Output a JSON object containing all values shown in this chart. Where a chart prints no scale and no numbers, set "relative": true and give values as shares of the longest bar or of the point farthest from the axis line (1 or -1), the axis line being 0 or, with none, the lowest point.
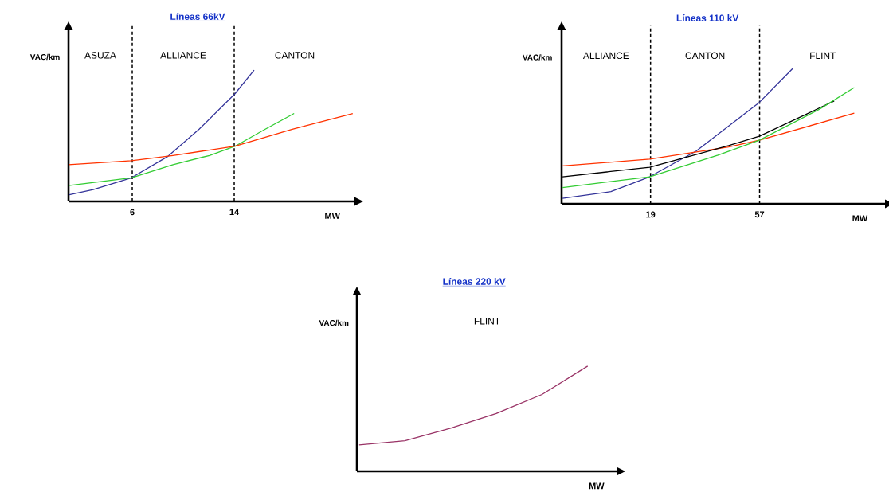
{
  "chart_data": [
    {
      "type": "line",
      "title": "Líneas 66kV",
      "xlabel": "MW",
      "ylabel": "VAC/km",
      "relative": true,
      "xlim": [
        1,
        23.5
      ],
      "xticks": [
        6,
        14
      ],
      "ref_lines": [
        {
          "axis": "x",
          "value": 6,
          "line_style": "dashed",
          "color": "#000000"
        },
        {
          "axis": "x",
          "value": 14,
          "line_style": "dashed",
          "color": "#000000"
        }
      ],
      "annotations": [
        "ASUZA",
        "ALLIANCE",
        "CANTON"
      ],
      "series": [
        {
          "color": "#333399",
          "x": [
            1.06,
            2.94,
            5.94,
            8.75,
            11.25,
            14.06,
            15.56
          ],
          "values": [
            0.05,
            0.09,
            0.18,
            0.34,
            0.55,
            0.82,
            1.0
          ]
        },
        {
          "color": "#33cc33",
          "x": [
            1,
            5.94,
            9.2,
            12.06,
            14.06,
            16.44,
            18.7
          ],
          "values": [
            0.12,
            0.18,
            0.28,
            0.35,
            0.42,
            0.55,
            0.67
          ]
        },
        {
          "color": "#ff3300",
          "x": [
            1,
            5.94,
            9.19,
            14.06,
            18.56,
            23.3
          ],
          "values": [
            0.28,
            0.31,
            0.35,
            0.42,
            0.55,
            0.67
          ]
        }
      ]
    },
    {
      "type": "line",
      "title": "Líneas 110 kV",
      "xlabel": "MW",
      "ylabel": "VAC/km",
      "relative": true,
      "xlim": [
        -12,
        101
      ],
      "xticks": [
        19,
        57
      ],
      "ref_lines": [
        {
          "axis": "x",
          "value": 19,
          "line_style": "dashed",
          "color": "#000000"
        },
        {
          "axis": "x",
          "value": 57,
          "line_style": "dashed",
          "color": "#000000"
        }
      ],
      "annotations": [
        "ALLIANCE",
        "CANTON",
        "FLINT"
      ],
      "series": [
        {
          "color": "#333399",
          "x": [
            -11.7,
            5.2,
            18.7,
            34.9,
            56.9,
            68.5
          ],
          "values": [
            0.04,
            0.09,
            0.2,
            0.39,
            0.75,
            1.0
          ]
        },
        {
          "color": "#ff3300",
          "x": [
            -11.7,
            18.7,
            46.2,
            56.9,
            90.0
          ],
          "values": [
            0.28,
            0.33,
            0.42,
            0.47,
            0.67
          ]
        },
        {
          "color": "#000000",
          "x": [
            -11.7,
            18.7,
            46.2,
            56.9,
            83.0
          ],
          "values": [
            0.2,
            0.27,
            0.43,
            0.5,
            0.76
          ]
        },
        {
          "color": "#33cc33",
          "x": [
            -11.7,
            18.7,
            42.5,
            56.9,
            77.9,
            90.0
          ],
          "values": [
            0.12,
            0.2,
            0.36,
            0.47,
            0.7,
            0.86
          ]
        }
      ]
    },
    {
      "type": "line",
      "title": "Líneas 220 kV",
      "xlabel": "MW",
      "ylabel": "VAC/km",
      "relative": true,
      "categories": [
        null,
        null,
        null,
        null,
        null,
        null
      ],
      "annotations": [
        "FLINT"
      ],
      "series": [
        {
          "color": "#993366",
          "values": [
            0.25,
            0.29,
            0.41,
            0.55,
            0.73,
            1.0
          ]
        }
      ]
    }
  ]
}
